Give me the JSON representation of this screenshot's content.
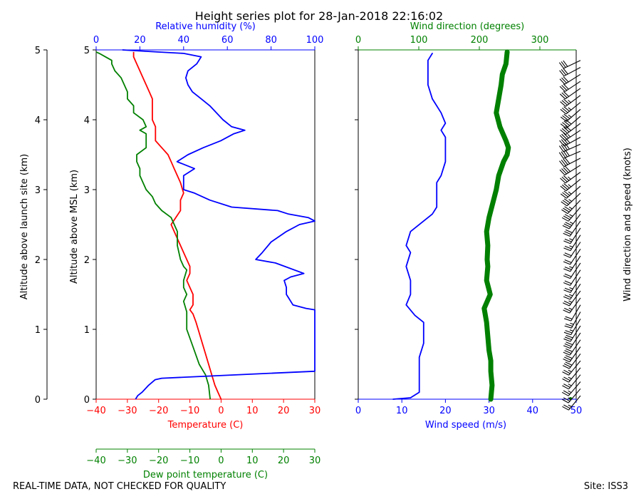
{
  "title": "Height series plot for 28-Jan-2018 22:16:02",
  "footer_left": "REAL-TIME DATA, NOT CHECKED FOR QUALITY",
  "footer_right": "Site: ISS3",
  "colors": {
    "temperature": "#ff0000",
    "dewpoint": "#008000",
    "rh": "#0000ff",
    "wind_speed": "#0000ff",
    "wind_dir": "#008000",
    "barbs": "#000000"
  },
  "chart_data": [
    {
      "type": "line",
      "panel": "thermo",
      "grid": false,
      "left_outer_axis": {
        "label": "Altitude above launch site (km)",
        "range": [
          0,
          5
        ],
        "ticks": [
          "0",
          "1",
          "2",
          "3",
          "4",
          "5"
        ]
      },
      "left_axis": {
        "label": "Altitude above MSL (km)",
        "range": [
          0,
          5
        ],
        "ticks": [
          "0",
          "1",
          "2",
          "3",
          "4",
          "5"
        ]
      },
      "bottom_axis": {
        "label": "Temperature (C)",
        "range": [
          -40,
          30
        ],
        "ticks": [
          "−40",
          "−30",
          "−20",
          "−10",
          "0",
          "10",
          "20",
          "30"
        ]
      },
      "lower_axis": {
        "label": "Dew point temperature (C)",
        "range": [
          -40,
          30
        ],
        "ticks": [
          "−40",
          "−30",
          "−20",
          "−10",
          "0",
          "10",
          "20",
          "30"
        ]
      },
      "top_axis": {
        "label": "Relative humidity (%)",
        "range": [
          0,
          100
        ],
        "ticks": [
          "0",
          "20",
          "40",
          "60",
          "80",
          "100"
        ]
      },
      "series": [
        {
          "name": "Temperature (C)",
          "color": "#ff0000",
          "x_axis": "bottom",
          "points": [
            [
              0,
              0
            ],
            [
              -1,
              0.1
            ],
            [
              -2,
              0.2
            ],
            [
              -3,
              0.35
            ],
            [
              -4,
              0.5
            ],
            [
              -5,
              0.65
            ],
            [
              -6,
              0.8
            ],
            [
              -7,
              0.95
            ],
            [
              -8,
              1.1
            ],
            [
              -9,
              1.22
            ],
            [
              -10,
              1.28
            ],
            [
              -9,
              1.35
            ],
            [
              -9,
              1.5
            ],
            [
              -10,
              1.6
            ],
            [
              -11,
              1.7
            ],
            [
              -10,
              1.8
            ],
            [
              -10,
              1.9
            ],
            [
              -11,
              2.0
            ],
            [
              -12,
              2.1
            ],
            [
              -13,
              2.2
            ],
            [
              -14,
              2.3
            ],
            [
              -15,
              2.4
            ],
            [
              -16,
              2.5
            ],
            [
              -13,
              2.7
            ],
            [
              -13,
              2.85
            ],
            [
              -12,
              2.95
            ],
            [
              -13,
              3.1
            ],
            [
              -15,
              3.3
            ],
            [
              -16,
              3.4
            ],
            [
              -17,
              3.5
            ],
            [
              -19,
              3.6
            ],
            [
              -21,
              3.7
            ],
            [
              -21,
              3.8
            ],
            [
              -21,
              3.9
            ],
            [
              -22,
              4.0
            ],
            [
              -22,
              4.1
            ],
            [
              -22,
              4.2
            ],
            [
              -22,
              4.3
            ],
            [
              -23,
              4.4
            ],
            [
              -24,
              4.5
            ],
            [
              -25,
              4.6
            ],
            [
              -26,
              4.7
            ],
            [
              -27,
              4.8
            ],
            [
              -28,
              4.9
            ],
            [
              -28,
              4.97
            ]
          ]
        },
        {
          "name": "Dew point temperature (C)",
          "color": "#008000",
          "x_axis": "lower",
          "points": [
            [
              -3.5,
              0
            ],
            [
              -4,
              0.2
            ],
            [
              -5,
              0.35
            ],
            [
              -7,
              0.5
            ],
            [
              -9,
              0.75
            ],
            [
              -11,
              1.0
            ],
            [
              -11,
              1.1
            ],
            [
              -11,
              1.25
            ],
            [
              -12,
              1.4
            ],
            [
              -11,
              1.5
            ],
            [
              -12,
              1.6
            ],
            [
              -12,
              1.7
            ],
            [
              -11,
              1.85
            ],
            [
              -12,
              1.9
            ],
            [
              -13,
              2.0
            ],
            [
              -14,
              2.2
            ],
            [
              -14,
              2.4
            ],
            [
              -16,
              2.6
            ],
            [
              -19,
              2.7
            ],
            [
              -21,
              2.8
            ],
            [
              -22,
              2.9
            ],
            [
              -24,
              3.0
            ],
            [
              -25,
              3.1
            ],
            [
              -26,
              3.2
            ],
            [
              -26,
              3.3
            ],
            [
              -27,
              3.4
            ],
            [
              -27,
              3.5
            ],
            [
              -24,
              3.6
            ],
            [
              -24,
              3.7
            ],
            [
              -24,
              3.8
            ],
            [
              -26,
              3.85
            ],
            [
              -24,
              3.9
            ],
            [
              -25,
              4.0
            ],
            [
              -28,
              4.1
            ],
            [
              -28,
              4.2
            ],
            [
              -30,
              4.3
            ],
            [
              -30,
              4.4
            ],
            [
              -31,
              4.5
            ],
            [
              -32,
              4.6
            ],
            [
              -34,
              4.7
            ],
            [
              -35,
              4.8
            ],
            [
              -35,
              4.85
            ],
            [
              -37,
              4.9
            ],
            [
              -39,
              4.95
            ],
            [
              -40,
              4.97
            ]
          ]
        },
        {
          "name": "Relative humidity (%)",
          "color": "#0000ff",
          "x_axis": "top",
          "points": [
            [
              18,
              0
            ],
            [
              19,
              0.05
            ],
            [
              21,
              0.1
            ],
            [
              24,
              0.2
            ],
            [
              27,
              0.28
            ],
            [
              30,
              0.3
            ],
            [
              100,
              0.4
            ],
            [
              100,
              1.0
            ],
            [
              100,
              1.28
            ],
            [
              96,
              1.3
            ],
            [
              90,
              1.35
            ],
            [
              88,
              1.45
            ],
            [
              87,
              1.5
            ],
            [
              87,
              1.6
            ],
            [
              86,
              1.7
            ],
            [
              89,
              1.75
            ],
            [
              95,
              1.8
            ],
            [
              82,
              1.95
            ],
            [
              73,
              2.0
            ],
            [
              76,
              2.1
            ],
            [
              80,
              2.25
            ],
            [
              87,
              2.4
            ],
            [
              93,
              2.5
            ],
            [
              100,
              2.55
            ],
            [
              97,
              2.6
            ],
            [
              88,
              2.65
            ],
            [
              83,
              2.7
            ],
            [
              62,
              2.75
            ],
            [
              52,
              2.85
            ],
            [
              45,
              2.95
            ],
            [
              40,
              3.0
            ],
            [
              40,
              3.2
            ],
            [
              45,
              3.3
            ],
            [
              37,
              3.4
            ],
            [
              42,
              3.5
            ],
            [
              49,
              3.6
            ],
            [
              57,
              3.7
            ],
            [
              63,
              3.8
            ],
            [
              68,
              3.85
            ],
            [
              62,
              3.9
            ],
            [
              58,
              4.0
            ],
            [
              55,
              4.1
            ],
            [
              52,
              4.2
            ],
            [
              48,
              4.3
            ],
            [
              44,
              4.4
            ],
            [
              42,
              4.5
            ],
            [
              41,
              4.6
            ],
            [
              42,
              4.7
            ],
            [
              46,
              4.8
            ],
            [
              48,
              4.9
            ],
            [
              40,
              4.95
            ],
            [
              28,
              4.97
            ],
            [
              12,
              5.0
            ]
          ]
        }
      ]
    },
    {
      "type": "line",
      "panel": "wind",
      "grid": false,
      "left_axis": {
        "range": [
          0,
          5
        ]
      },
      "bottom_axis": {
        "label": "Wind speed (m/s)",
        "range": [
          0,
          50
        ],
        "ticks": [
          "0",
          "10",
          "20",
          "30",
          "40",
          "50"
        ]
      },
      "top_axis": {
        "label": "Wind direction (degrees)",
        "range": [
          0,
          360
        ],
        "ticks": [
          "0",
          "100",
          "200",
          "300"
        ]
      },
      "right_label": "Wind direction and speed (knots)",
      "series": [
        {
          "name": "Wind speed (m/s)",
          "color": "#0000ff",
          "x_axis": "bottom",
          "points": [
            [
              8,
              0
            ],
            [
              12,
              0.02
            ],
            [
              14,
              0.1
            ],
            [
              14,
              0.4
            ],
            [
              14,
              0.6
            ],
            [
              15,
              0.8
            ],
            [
              15,
              1.0
            ],
            [
              15,
              1.1
            ],
            [
              13,
              1.2
            ],
            [
              11,
              1.35
            ],
            [
              12,
              1.5
            ],
            [
              12,
              1.7
            ],
            [
              11,
              1.9
            ],
            [
              12,
              2.1
            ],
            [
              11,
              2.2
            ],
            [
              12,
              2.4
            ],
            [
              15,
              2.55
            ],
            [
              17,
              2.65
            ],
            [
              18,
              2.75
            ],
            [
              18,
              3.0
            ],
            [
              18,
              3.1
            ],
            [
              19,
              3.2
            ],
            [
              20,
              3.4
            ],
            [
              20,
              3.6
            ],
            [
              20,
              3.75
            ],
            [
              19,
              3.85
            ],
            [
              20,
              3.95
            ],
            [
              19,
              4.1
            ],
            [
              17,
              4.3
            ],
            [
              16,
              4.5
            ],
            [
              16,
              4.7
            ],
            [
              16,
              4.85
            ],
            [
              17,
              4.95
            ]
          ]
        },
        {
          "name": "Wind direction (degrees)",
          "color": "#008000",
          "x_axis": "top",
          "points": [
            [
              219,
              0
            ],
            [
              221,
              0.2
            ],
            [
              219,
              0.4
            ],
            [
              219,
              0.55
            ],
            [
              216,
              0.7
            ],
            [
              214,
              0.9
            ],
            [
              212,
              1.1
            ],
            [
              208,
              1.3
            ],
            [
              218,
              1.5
            ],
            [
              212,
              1.7
            ],
            [
              214,
              1.9
            ],
            [
              213,
              2.0
            ],
            [
              214,
              2.2
            ],
            [
              212,
              2.4
            ],
            [
              216,
              2.6
            ],
            [
              222,
              2.8
            ],
            [
              228,
              3.0
            ],
            [
              232,
              3.2
            ],
            [
              240,
              3.4
            ],
            [
              246,
              3.5
            ],
            [
              248,
              3.6
            ],
            [
              244,
              3.7
            ],
            [
              234,
              3.9
            ],
            [
              228,
              4.1
            ],
            [
              232,
              4.3
            ],
            [
              236,
              4.5
            ],
            [
              238,
              4.65
            ],
            [
              244,
              4.8
            ],
            [
              246,
              4.97
            ]
          ]
        }
      ]
    }
  ]
}
